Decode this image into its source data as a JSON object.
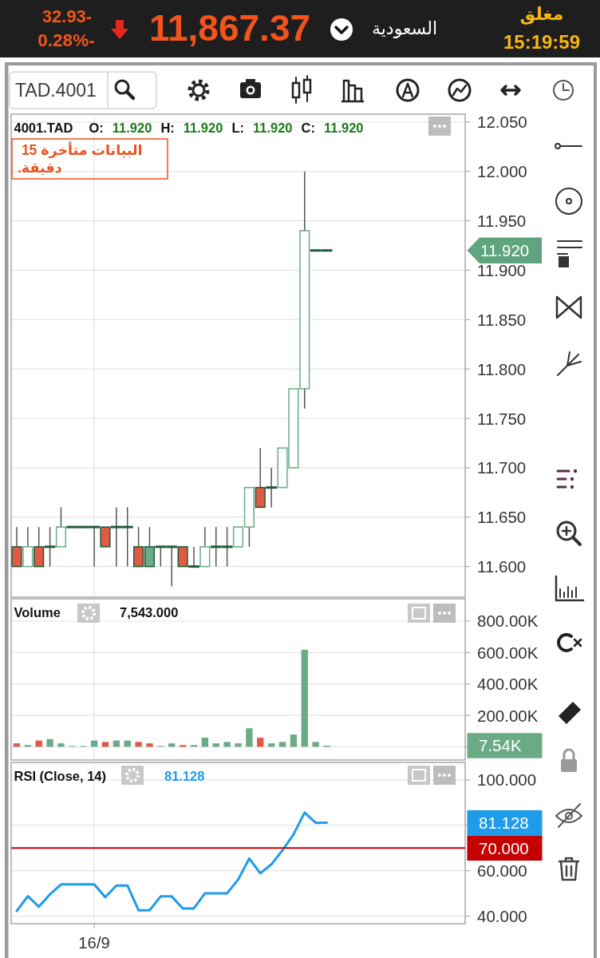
{
  "chart_data": [
    {
      "type": "other",
      "title": "11,867.37",
      "annotations": [
        "32.93-",
        "0.28%-",
        "السعودية",
        "مغلق",
        "15:19:59",
        "TAD.4001"
      ]
    },
    {
      "type": "candlestick",
      "title": "4001.TAD",
      "subtitle": "البيانات متأخرة 15 دقيقة.",
      "annotations": [
        "O:",
        "11.920",
        "H:",
        "11.920",
        "L:",
        "11.920",
        "C:",
        "11.920",
        "11.920"
      ],
      "categories": [
        null,
        null,
        null,
        null,
        null,
        null,
        null,
        null,
        null,
        null,
        null,
        null,
        null,
        null,
        null,
        null,
        null,
        null,
        null,
        null,
        null,
        null,
        null,
        null,
        null,
        null,
        null,
        null,
        null,
        null,
        null,
        null,
        null,
        null,
        null,
        null,
        null,
        null,
        null,
        null,
        null
      ],
      "ohlc": [
        [
          11.62,
          11.64,
          11.6,
          11.6
        ],
        [
          11.6,
          11.64,
          11.6,
          11.62
        ],
        [
          11.62,
          11.64,
          11.6,
          11.6
        ],
        [
          11.62,
          11.64,
          11.6,
          11.62
        ],
        [
          11.62,
          11.66,
          11.62,
          11.64
        ],
        [
          11.64,
          11.64,
          11.64,
          11.64
        ],
        [
          11.64,
          11.64,
          11.64,
          11.64
        ],
        [
          11.64,
          11.64,
          11.6,
          11.64
        ],
        [
          11.64,
          11.64,
          11.62,
          11.62
        ],
        [
          11.64,
          11.66,
          11.6,
          11.64
        ],
        [
          11.64,
          11.66,
          11.6,
          11.64
        ],
        [
          11.62,
          11.64,
          11.6,
          11.6
        ],
        [
          11.62,
          11.64,
          11.6,
          11.6
        ],
        [
          11.62,
          11.62,
          11.6,
          11.62
        ],
        [
          11.62,
          11.62,
          11.58,
          11.62
        ],
        [
          11.62,
          11.62,
          11.6,
          11.6
        ],
        [
          11.6,
          11.62,
          11.6,
          11.6
        ],
        [
          11.6,
          11.64,
          11.6,
          11.62
        ],
        [
          11.62,
          11.64,
          11.6,
          11.62
        ],
        [
          11.62,
          11.64,
          11.6,
          11.62
        ],
        [
          11.62,
          11.64,
          11.62,
          11.64
        ],
        [
          11.64,
          11.68,
          11.62,
          11.68
        ],
        [
          11.68,
          11.72,
          11.66,
          11.66
        ],
        [
          11.68,
          11.7,
          11.66,
          11.68
        ],
        [
          11.68,
          11.72,
          11.68,
          11.72
        ],
        [
          11.7,
          11.78,
          11.7,
          11.78
        ],
        [
          11.78,
          12.0,
          11.76,
          11.94
        ],
        [
          11.92,
          11.92,
          11.92,
          11.92
        ],
        [
          11.92,
          11.92,
          11.92,
          11.92
        ],
        null,
        null,
        null,
        null,
        null,
        null,
        null,
        null,
        null,
        null,
        null,
        null
      ],
      "colors": [
        "#e05a44",
        "#6aab86",
        "#e05a44",
        "#1e5a3c",
        "#6aab86",
        "#1e5a3c",
        "#1e5a3c",
        "#1e5a3c",
        "#e05a44",
        "#1e5a3c",
        "#1e5a3c",
        "#e05a44",
        "#6aab86",
        "#1e5a3c",
        "#1e5a3c",
        "#e05a44",
        "#1e5a3c",
        "#6aab86",
        "#1e5a3c",
        "#1e5a3c",
        "#6aab86",
        "#6aab86",
        "#e05a44",
        "#1e5a3c",
        "#6aab86",
        "#6aab86",
        "#6aab86",
        "#1e5a3c",
        "#1e5a3c",
        null,
        null,
        null,
        null,
        null,
        null,
        null,
        null,
        null,
        null,
        null,
        null
      ],
      "ylim": [
        11.569,
        12.058
      ],
      "yticks": [
        {
          "value": 11.6,
          "label": "11.600"
        },
        {
          "value": 11.65,
          "label": "11.650"
        },
        {
          "value": 11.7,
          "label": "11.700"
        },
        {
          "value": 11.75,
          "label": "11.750"
        },
        {
          "value": 11.8,
          "label": "11.800"
        },
        {
          "value": 11.85,
          "label": "11.850"
        },
        {
          "value": 11.9,
          "label": "11.900"
        },
        {
          "value": 11.95,
          "label": "11.950"
        },
        {
          "value": 12.0,
          "label": "12.000"
        },
        {
          "value": 12.05,
          "label": "12.050"
        }
      ],
      "grid": true,
      "tick_labels": "y"
    },
    {
      "type": "bar",
      "title": "Volume",
      "subtitle": "7,543.000",
      "annotations": [
        "7.54K"
      ],
      "categories": [
        null,
        null,
        null,
        null,
        null,
        null,
        null,
        null,
        null,
        null,
        null,
        null,
        null,
        null,
        null,
        null,
        null,
        null,
        null,
        null,
        null,
        null,
        null,
        null,
        null,
        null,
        null,
        null,
        null,
        null,
        null,
        null,
        null,
        null,
        null,
        null,
        null,
        null,
        null,
        null,
        null
      ],
      "values": [
        22,
        11,
        40,
        49,
        22,
        5,
        5,
        40,
        31,
        40,
        40,
        31,
        22,
        5,
        22,
        11,
        11,
        58,
        22,
        31,
        22,
        118,
        58,
        22,
        31,
        78,
        617,
        31,
        7.543,
        null,
        null,
        null,
        null,
        null,
        null,
        null,
        null,
        null,
        null,
        null,
        null
      ],
      "colors": [
        "#e05a44",
        "#6aab86",
        "#e05a44",
        "#6aab86",
        "#6aab86",
        "#6aab86",
        "#6aab86",
        "#6aab86",
        "#e05a44",
        "#6aab86",
        "#6aab86",
        "#e05a44",
        "#e05a44",
        "#6aab86",
        "#6aab86",
        "#e05a44",
        "#6aab86",
        "#6aab86",
        "#6aab86",
        "#6aab86",
        "#6aab86",
        "#6aab86",
        "#e05a44",
        "#6aab86",
        "#6aab86",
        "#6aab86",
        "#6aab86",
        "#6aab86",
        "#6aab86",
        null,
        null,
        null,
        null,
        null,
        null,
        null,
        null,
        null,
        null,
        null,
        null
      ],
      "ylim": [
        -84,
        942
      ],
      "yticks": [
        {
          "value": 0,
          "label": null
        },
        {
          "value": 200,
          "label": "200.00K"
        },
        {
          "value": 400,
          "label": "400.00K"
        },
        {
          "value": 600,
          "label": "600.00K"
        },
        {
          "value": 800,
          "label": "800.00K"
        }
      ],
      "grid": true,
      "tick_labels": "y"
    },
    {
      "type": "line",
      "title": "RSI (Close, 14)",
      "subtitle": "81.128",
      "annotations": [
        "81.128"
      ],
      "categories": [
        null,
        null,
        null,
        null,
        null,
        null,
        null,
        "16/9",
        null,
        null,
        null,
        null,
        null,
        null,
        null,
        null,
        null,
        null,
        null,
        null,
        null,
        null,
        null,
        null,
        null,
        null,
        null,
        null,
        null,
        null,
        null,
        null,
        null,
        null,
        null,
        null,
        null,
        null,
        null,
        null,
        null
      ],
      "values": [
        42.3,
        48.8,
        44.2,
        49.6,
        54.0,
        54.0,
        54.0,
        54.0,
        48.4,
        53.5,
        53.5,
        42.6,
        42.6,
        48.7,
        48.7,
        43.4,
        43.4,
        50.1,
        50.1,
        50.1,
        56.1,
        65.4,
        58.9,
        62.8,
        69.0,
        76.0,
        85.6,
        81.1,
        81.128,
        null,
        null,
        null,
        null,
        null,
        null,
        null,
        null,
        null,
        null,
        null,
        null
      ],
      "color": "#1e9be9",
      "ylim": [
        36.7,
        107.7
      ],
      "yticks": [
        {
          "value": 40,
          "label": "40.000"
        },
        {
          "value": 60,
          "label": "60.000"
        },
        {
          "value": 80,
          "label": null
        },
        {
          "value": 100,
          "label": "100.000"
        }
      ],
      "grid": true,
      "ref_lines": [
        {
          "axis": "y",
          "value": 70,
          "label": "70.000",
          "color": "#c40000"
        }
      ]
    }
  ]
}
